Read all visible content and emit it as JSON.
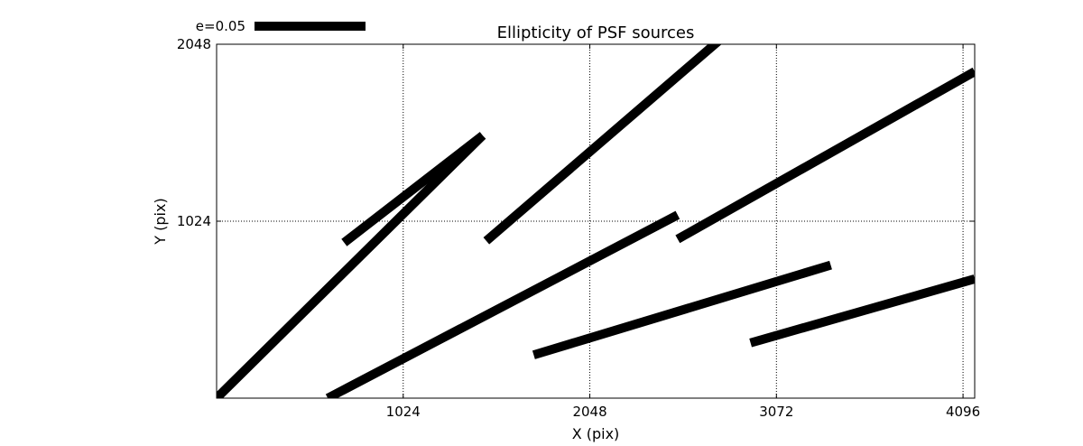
{
  "chart_data": {
    "type": "line",
    "title": "Ellipticity of PSF sources",
    "xlabel": "X (pix)",
    "ylabel": "Y (pix)",
    "xlim": [
      0,
      4160
    ],
    "ylim": [
      0,
      2048
    ],
    "xticks": [
      1024,
      2048,
      3072,
      4096
    ],
    "xtick_labels": [
      "1024",
      "2048",
      "3072",
      "4096"
    ],
    "yticks": [
      1024,
      2048
    ],
    "ytick_labels": [
      "1024",
      "2048"
    ],
    "grid": true,
    "grid_style": "dotted",
    "legend": {
      "label": "e=0.05",
      "placement": "top-left, above axes"
    },
    "series": [
      {
        "values": [
          [
            0,
            0
          ],
          [
            1460,
            1520
          ]
        ]
      },
      {
        "values": [
          [
            700,
            900
          ],
          [
            1460,
            1520
          ]
        ]
      },
      {
        "values": [
          [
            1480,
            910
          ],
          [
            2780,
            2090
          ]
        ]
      },
      {
        "values": [
          [
            610,
            0
          ],
          [
            2530,
            1060
          ]
        ]
      },
      {
        "values": [
          [
            2530,
            920
          ],
          [
            4160,
            1890
          ]
        ]
      },
      {
        "values": [
          [
            1740,
            250
          ],
          [
            3370,
            770
          ]
        ]
      },
      {
        "values": [
          [
            2930,
            320
          ],
          [
            4160,
            690
          ]
        ]
      }
    ]
  }
}
